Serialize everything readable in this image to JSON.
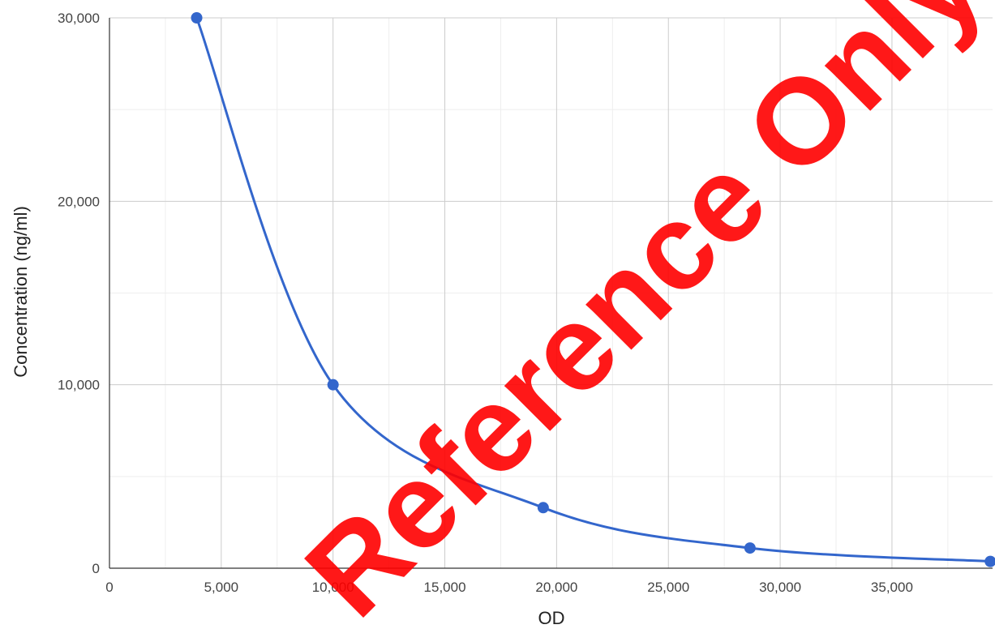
{
  "chart_data": {
    "type": "line",
    "xlabel": "OD",
    "ylabel": "Concentration (ng/ml)",
    "xlim": [
      0,
      39500
    ],
    "ylim": [
      0,
      30000
    ],
    "x_ticks": [
      0,
      5000,
      10000,
      15000,
      20000,
      25000,
      30000,
      35000
    ],
    "x_tick_labels": [
      "0",
      "5,000",
      "10,000",
      "15,000",
      "20,000",
      "25,000",
      "30,000",
      "35,000"
    ],
    "y_ticks": [
      0,
      10000,
      20000,
      30000
    ],
    "y_tick_labels": [
      "0",
      "10,000",
      "20,000",
      "30,000"
    ],
    "grid": true,
    "series": [
      {
        "color": "#3366cc",
        "smooth": true,
        "points": [
          {
            "x": 3900,
            "y": 30000
          },
          {
            "x": 10000,
            "y": 10000
          },
          {
            "x": 19400,
            "y": 3300
          },
          {
            "x": 28650,
            "y": 1100
          },
          {
            "x": 39400,
            "y": 370
          }
        ]
      }
    ]
  },
  "watermark": {
    "text": "Reference Only",
    "color": "#ff0000"
  }
}
